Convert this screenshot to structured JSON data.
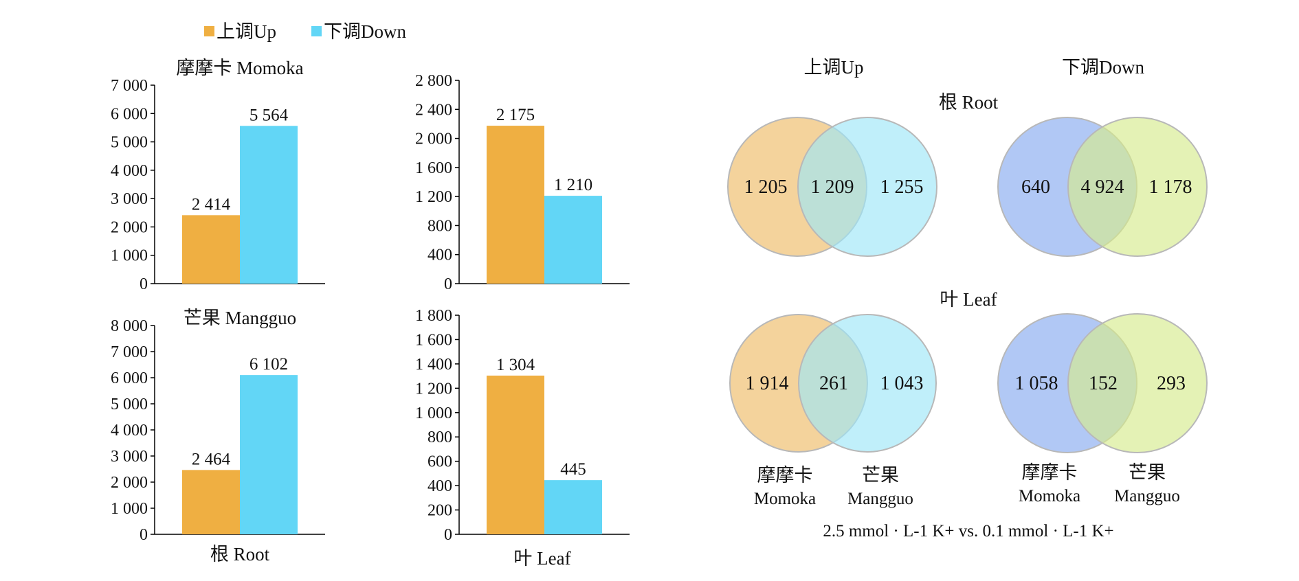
{
  "legend": {
    "up_label": "上调Up",
    "down_label": "下调Down"
  },
  "colors": {
    "up": "#EFAF42",
    "down": "#62D6F6",
    "venn_up_a": "#F2CB8B",
    "venn_up_b": "#9EE6F8",
    "venn_down_a": "#A3BEF3",
    "venn_down_b": "#D5EB8E"
  },
  "bar_panels": {
    "root_xlabel": "根 Root",
    "leaf_xlabel": "叶 Leaf"
  },
  "venn_panel": {
    "up_header": "上调Up",
    "down_header": "下调Down",
    "root_label": "根 Root",
    "leaf_label": "叶 Leaf",
    "momoka_cn": "摩摩卡",
    "momoka_en": "Momoka",
    "mangguo_cn": "芒果",
    "mangguo_en": "Mangguo",
    "footer": "2.5 mmol · L-1 K+ vs. 0.1 mmol · L-1 K+"
  },
  "chart_data": [
    {
      "type": "bar",
      "id": "root-momoka",
      "title": "摩摩卡 Momoka",
      "categories": [
        "上调Up",
        "下调Down"
      ],
      "values": [
        2414,
        5564
      ],
      "value_labels": [
        "2 414",
        "5 564"
      ],
      "ylim": [
        0,
        7000
      ],
      "ticks": [
        0,
        1000,
        2000,
        3000,
        4000,
        5000,
        6000,
        7000
      ],
      "tick_labels": [
        "0",
        "1 000",
        "2 000",
        "3 000",
        "4 000",
        "5 000",
        "6 000",
        "7 000"
      ]
    },
    {
      "type": "bar",
      "id": "leaf-momoka",
      "title": "",
      "categories": [
        "上调Up",
        "下调Down"
      ],
      "values": [
        2175,
        1210
      ],
      "value_labels": [
        "2 175",
        "1 210"
      ],
      "ylim": [
        0,
        2800
      ],
      "ticks": [
        0,
        400,
        800,
        1200,
        1600,
        2000,
        2400,
        2800
      ],
      "tick_labels": [
        "0",
        "400",
        "800",
        "1 200",
        "1 600",
        "2 000",
        "2 400",
        "2 800"
      ]
    },
    {
      "type": "bar",
      "id": "root-mangguo",
      "title": "芒果 Mangguo",
      "categories": [
        "上调Up",
        "下调Down"
      ],
      "values": [
        2464,
        6102
      ],
      "value_labels": [
        "2 464",
        "6 102"
      ],
      "ylim": [
        0,
        8000
      ],
      "ticks": [
        0,
        1000,
        2000,
        3000,
        4000,
        5000,
        6000,
        7000,
        8000
      ],
      "tick_labels": [
        "0",
        "1 000",
        "2 000",
        "3 000",
        "4 000",
        "5 000",
        "6 000",
        "7 000",
        "8 000"
      ]
    },
    {
      "type": "bar",
      "id": "leaf-mangguo",
      "title": "",
      "categories": [
        "上调Up",
        "下调Down"
      ],
      "values": [
        1304,
        445
      ],
      "value_labels": [
        "1 304",
        "445"
      ],
      "ylim": [
        0,
        1800
      ],
      "ticks": [
        0,
        200,
        400,
        600,
        800,
        1000,
        1200,
        1400,
        1600,
        1800
      ],
      "tick_labels": [
        "0",
        "200",
        "400",
        "600",
        "800",
        "1 000",
        "1 200",
        "1 400",
        "1 600",
        "1 800"
      ]
    },
    {
      "type": "venn",
      "id": "root-up",
      "sets": [
        "摩摩卡 Momoka",
        "芒果 Mangguo"
      ],
      "only_a": "1 205",
      "both": "1 209",
      "only_b": "1 255"
    },
    {
      "type": "venn",
      "id": "root-down",
      "sets": [
        "摩摩卡 Momoka",
        "芒果 Mangguo"
      ],
      "only_a": "640",
      "both": "4 924",
      "only_b": "1 178"
    },
    {
      "type": "venn",
      "id": "leaf-up",
      "sets": [
        "摩摩卡 Momoka",
        "芒果 Mangguo"
      ],
      "only_a": "1 914",
      "both": "261",
      "only_b": "1 043"
    },
    {
      "type": "venn",
      "id": "leaf-down",
      "sets": [
        "摩摩卡 Momoka",
        "芒果 Mangguo"
      ],
      "only_a": "1 058",
      "both": "152",
      "only_b": "293"
    }
  ]
}
